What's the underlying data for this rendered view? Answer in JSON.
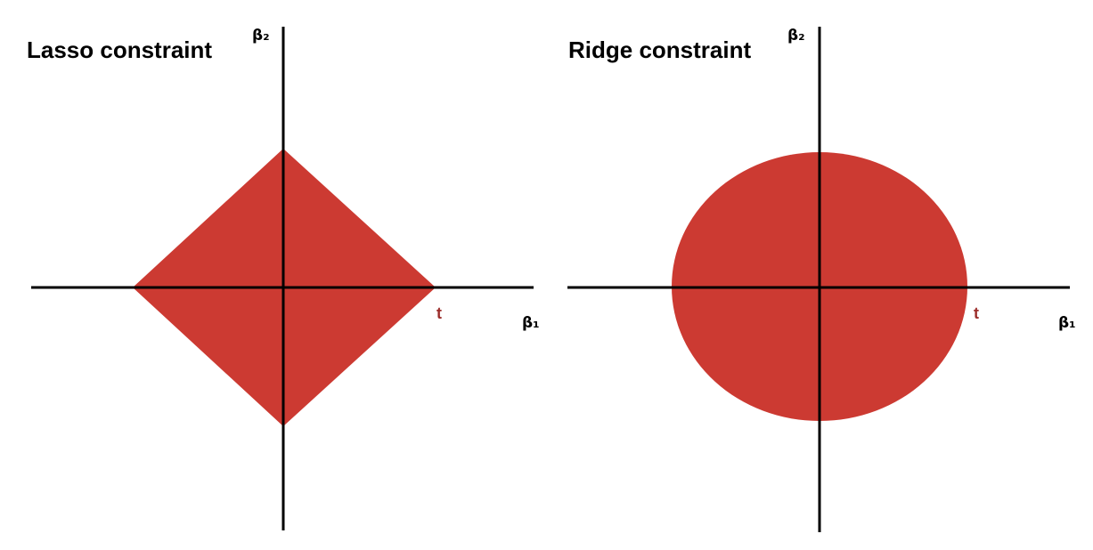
{
  "colors": {
    "region": "#cc3a32",
    "t_label": "#9b2d2a",
    "axis": "#000000"
  },
  "panels": {
    "lasso": {
      "title": "Lasso constraint",
      "x_axis_label": "β₁",
      "y_axis_label": "β₂",
      "t_label": "t",
      "shape": "diamond"
    },
    "ridge": {
      "title": "Ridge constraint",
      "x_axis_label": "β₁",
      "y_axis_label": "β₂",
      "t_label": "t",
      "shape": "circle"
    }
  }
}
